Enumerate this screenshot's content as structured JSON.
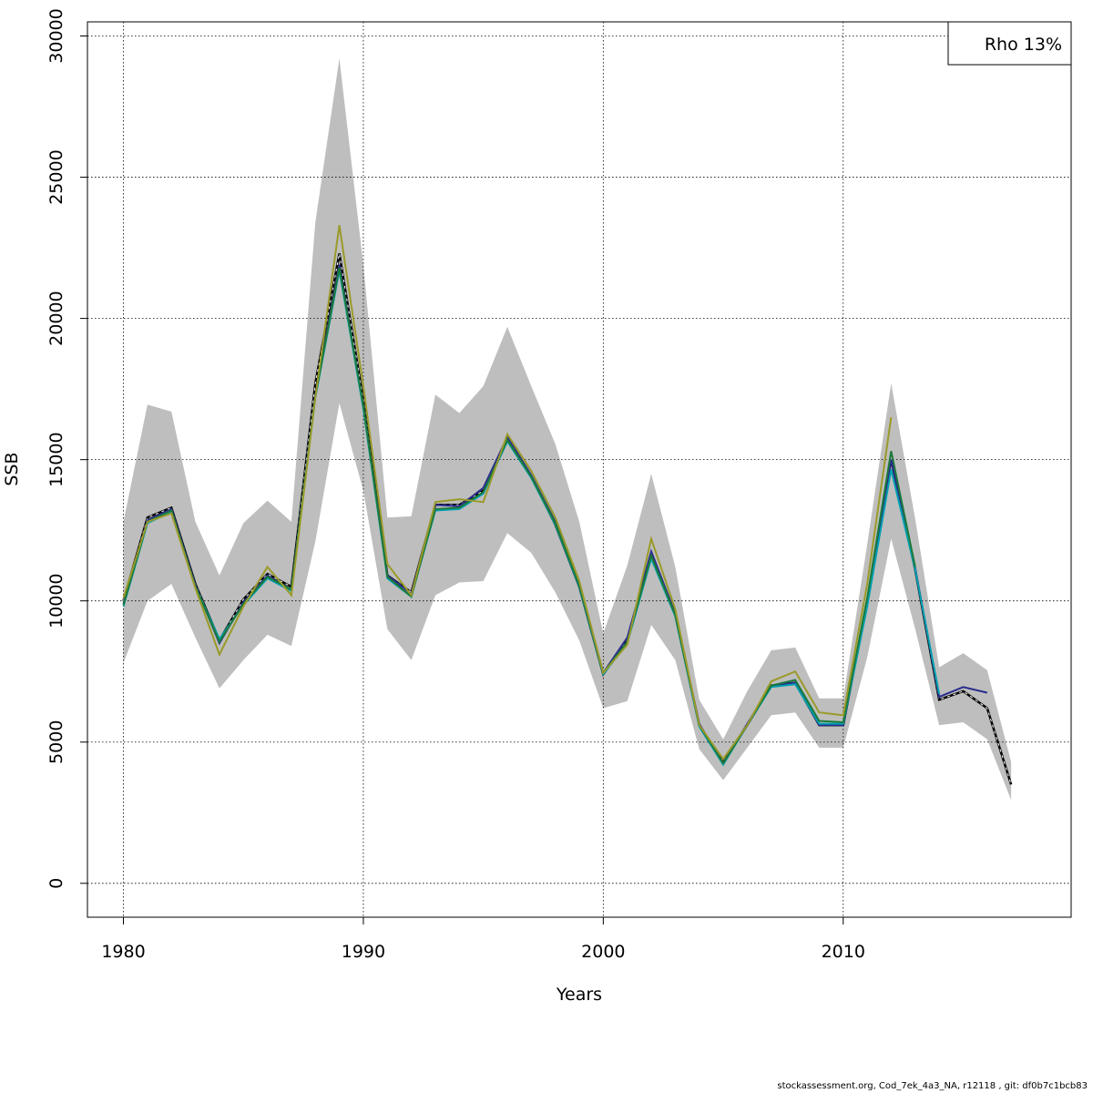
{
  "chart_data": {
    "type": "line",
    "xlabel": "Years",
    "ylabel": "SSB",
    "xlim": [
      1978.5,
      2019.5
    ],
    "ylim": [
      -1200,
      30500
    ],
    "x_ticks": [
      1980,
      1990,
      2000,
      2010
    ],
    "y_ticks": [
      0,
      5000,
      10000,
      15000,
      20000,
      25000,
      30000
    ],
    "grid": true,
    "legend": {
      "position": "top-right",
      "text": "Rho 13%"
    },
    "colors": {
      "band": "#bebebe",
      "grid": "#000000"
    },
    "band": {
      "x": [
        1980,
        1981,
        1982,
        1983,
        1984,
        1985,
        1986,
        1987,
        1988,
        1989,
        1990,
        1991,
        1992,
        1993,
        1994,
        1995,
        1996,
        1997,
        1998,
        1999,
        2000,
        2001,
        2002,
        2003,
        2004,
        2005,
        2006,
        2007,
        2008,
        2009,
        2010,
        2011,
        2012,
        2013,
        2014,
        2015,
        2016,
        2017
      ],
      "lower": [
        7800,
        10000,
        10600,
        8700,
        6900,
        7900,
        8800,
        8400,
        12100,
        17000,
        13900,
        9000,
        7900,
        10200,
        10650,
        10700,
        12400,
        11700,
        10300,
        8600,
        6200,
        6450,
        9150,
        7900,
        4750,
        3650,
        4800,
        5950,
        6050,
        4800,
        4800,
        8000,
        12200,
        9000,
        5600,
        5700,
        5100,
        2950
      ],
      "upper": [
        12800,
        16950,
        16700,
        12800,
        10900,
        12750,
        13550,
        12800,
        23400,
        29200,
        21900,
        12950,
        13000,
        17300,
        16650,
        17600,
        19700,
        17600,
        15550,
        12800,
        8850,
        11250,
        14500,
        11200,
        6500,
        5100,
        6800,
        8250,
        8350,
        6550,
        6550,
        12000,
        17700,
        12900,
        7650,
        8150,
        7550,
        4300
      ]
    },
    "series": [
      {
        "name": "",
        "color": "#000000",
        "dashed": true,
        "x": [
          1980,
          1981,
          1982,
          1983,
          1984,
          1985,
          1986,
          1987,
          1988,
          1989,
          1990,
          1991,
          1992,
          1993,
          1994,
          1995,
          1996,
          1997,
          1998,
          1999,
          2000,
          2001,
          2002,
          2003,
          2004,
          2005,
          2006,
          2007,
          2008,
          2009,
          2010,
          2011,
          2012,
          2013,
          2014,
          2015,
          2016,
          2017
        ],
        "values": [
          10000,
          12950,
          13300,
          10600,
          8600,
          10050,
          10950,
          10500,
          17700,
          22300,
          17100,
          10900,
          10300,
          13400,
          13400,
          13900,
          15700,
          14400,
          12700,
          10500,
          7400,
          8600,
          11600,
          9500,
          5600,
          4300,
          5600,
          7000,
          7100,
          5600,
          5600,
          10000,
          15000,
          11100,
          6500,
          6800,
          6200,
          3500
        ]
      },
      {
        "name": "",
        "color": "#2b2b8f",
        "dashed": false,
        "x": [
          1980,
          1981,
          1982,
          1983,
          1984,
          1985,
          1986,
          1987,
          1988,
          1989,
          1990,
          1991,
          1992,
          1993,
          1994,
          1995,
          1996,
          1997,
          1998,
          1999,
          2000,
          2001,
          2002,
          2003,
          2004,
          2005,
          2006,
          2007,
          2008,
          2009,
          2010,
          2011,
          2012,
          2013,
          2014,
          2015,
          2016
        ],
        "values": [
          9900,
          12850,
          13250,
          10550,
          8500,
          9950,
          10900,
          10400,
          17300,
          21900,
          16900,
          10900,
          10250,
          13400,
          13350,
          14000,
          15800,
          14450,
          12800,
          10600,
          7450,
          8700,
          11750,
          9550,
          5650,
          4250,
          5650,
          7000,
          7100,
          5600,
          5600,
          10050,
          15000,
          11150,
          6600,
          6950,
          6750
        ]
      },
      {
        "name": "",
        "color": "#00a0b0",
        "dashed": false,
        "x": [
          1980,
          1981,
          1982,
          1983,
          1984,
          1985,
          1986,
          1987,
          1988,
          1989,
          1990,
          1991,
          1992,
          1993,
          1994,
          1995,
          1996,
          1997,
          1998,
          1999,
          2000,
          2001,
          2002,
          2003,
          2004,
          2005,
          2006,
          2007,
          2008,
          2009,
          2010,
          2011,
          2012,
          2013,
          2014
        ],
        "values": [
          9800,
          12750,
          13150,
          10500,
          8650,
          9850,
          10800,
          10350,
          17200,
          21700,
          16800,
          10800,
          10150,
          13200,
          13250,
          13800,
          15650,
          14350,
          12700,
          10500,
          7400,
          8500,
          11500,
          9450,
          5550,
          4200,
          5600,
          6950,
          7050,
          5650,
          5650,
          9800,
          14650,
          11100,
          6700
        ]
      },
      {
        "name": "",
        "color": "#1b7a3a",
        "dashed": false,
        "x": [
          1980,
          1981,
          1982,
          1983,
          1984,
          1985,
          1986,
          1987,
          1988,
          1989,
          1990,
          1991,
          1992,
          1993,
          1994,
          1995,
          1996,
          1997,
          1998,
          1999,
          2000,
          2001,
          2002,
          2003,
          2004,
          2005,
          2006,
          2007,
          2008,
          2009,
          2010,
          2011,
          2012,
          2013
        ],
        "values": [
          9850,
          12800,
          13200,
          10500,
          8550,
          9900,
          10850,
          10400,
          17250,
          21800,
          16900,
          10850,
          10150,
          13250,
          13300,
          13850,
          15700,
          14400,
          12750,
          10550,
          7450,
          8550,
          11600,
          9500,
          5600,
          4250,
          5600,
          7000,
          7200,
          5750,
          5700,
          10100,
          15300,
          11200
        ]
      },
      {
        "name": "",
        "color": "#9a9a2a",
        "dashed": false,
        "x": [
          1980,
          1981,
          1982,
          1983,
          1984,
          1985,
          1986,
          1987,
          1988,
          1989,
          1990,
          1991,
          1992,
          1993,
          1994,
          1995,
          1996,
          1997,
          1998,
          1999,
          2000,
          2001,
          2002,
          2003,
          2004,
          2005,
          2006,
          2007,
          2008,
          2009,
          2010,
          2011,
          2012
        ],
        "values": [
          10100,
          12800,
          13100,
          10450,
          8100,
          9800,
          11200,
          10200,
          17200,
          23300,
          17600,
          11300,
          10200,
          13500,
          13600,
          13500,
          15900,
          14600,
          12950,
          10700,
          7450,
          8450,
          12200,
          9700,
          5600,
          4400,
          5600,
          7150,
          7500,
          6050,
          5950,
          10600,
          16500
        ]
      }
    ]
  },
  "footer": "stockassessment.org, Cod_7ek_4a3_NA, r12118 , git: df0b7c1bcb83"
}
